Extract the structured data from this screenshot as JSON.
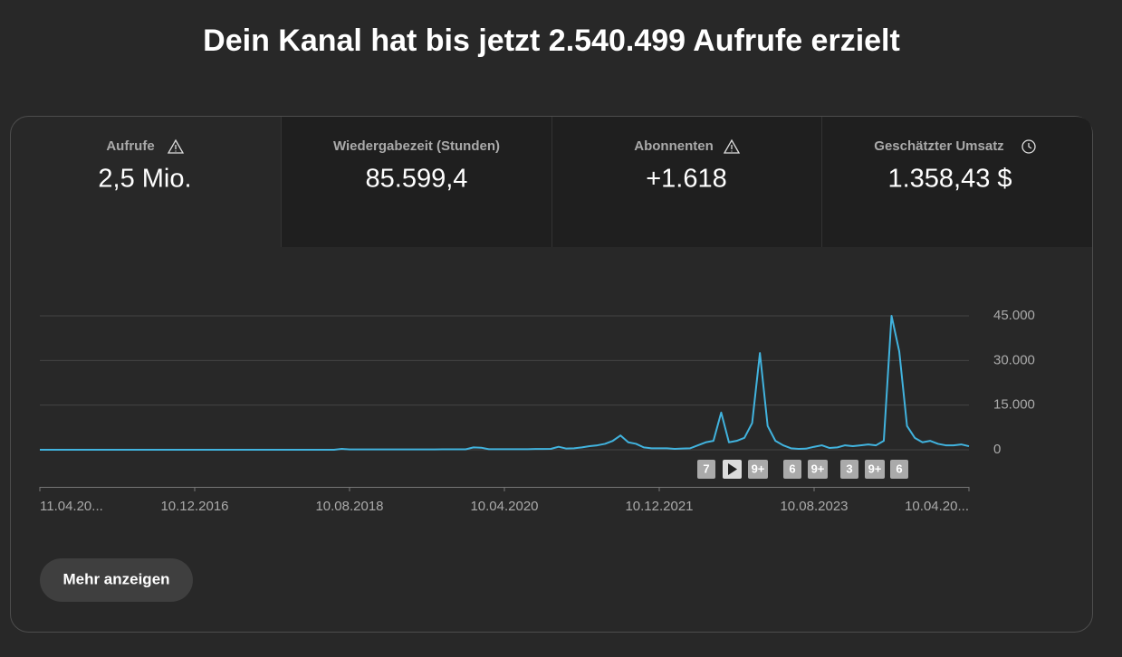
{
  "header": {
    "title": "Dein Kanal hat bis jetzt 2.540.499 Aufrufe erzielt"
  },
  "tabs": [
    {
      "label": "Aufrufe",
      "value": "2,5 Mio."
    },
    {
      "label": "Wiedergabezeit (Stunden)",
      "value": "85.599,4"
    },
    {
      "label": "Abonnenten",
      "value": "+1.618"
    },
    {
      "label": "Geschätzter Umsatz",
      "value": "1.358,43 $"
    }
  ],
  "chart_data": {
    "type": "line",
    "categories": [
      "11.04.20...",
      null,
      null,
      null,
      null,
      null,
      null,
      null,
      null,
      null,
      null,
      null,
      null,
      null,
      null,
      null,
      null,
      null,
      null,
      null,
      "10.12.2016",
      null,
      null,
      null,
      null,
      null,
      null,
      null,
      null,
      null,
      null,
      null,
      null,
      null,
      null,
      null,
      null,
      null,
      null,
      null,
      "10.08.2018",
      null,
      null,
      null,
      null,
      null,
      null,
      null,
      null,
      null,
      null,
      null,
      null,
      null,
      null,
      null,
      null,
      null,
      null,
      null,
      "10.04.2020",
      null,
      null,
      null,
      null,
      null,
      null,
      null,
      null,
      null,
      null,
      null,
      null,
      null,
      null,
      null,
      null,
      null,
      null,
      null,
      "10.12.2021",
      null,
      null,
      null,
      null,
      null,
      null,
      null,
      null,
      null,
      null,
      null,
      null,
      null,
      null,
      null,
      null,
      null,
      null,
      null,
      "10.08.2023",
      null,
      null,
      null,
      null,
      null,
      null,
      null,
      null,
      null,
      null,
      null,
      null,
      null,
      null,
      null,
      null,
      null,
      null,
      null,
      "10.04.20..."
    ],
    "series": [
      {
        "color": "#41b3de",
        "values": [
          0,
          0,
          0,
          0,
          0,
          0,
          0,
          0,
          0,
          0,
          0,
          0,
          0,
          0,
          0,
          0,
          0,
          0,
          0,
          0,
          0,
          0,
          0,
          0,
          0,
          0,
          0,
          0,
          0,
          0,
          0,
          0,
          0,
          0,
          0,
          0,
          0,
          0,
          0,
          300,
          100,
          100,
          100,
          100,
          100,
          100,
          100,
          100,
          100,
          100,
          100,
          100,
          150,
          150,
          150,
          150,
          800,
          700,
          200,
          200,
          200,
          200,
          200,
          200,
          250,
          250,
          300,
          1000,
          400,
          500,
          800,
          1200,
          1500,
          2000,
          3000,
          4800,
          2500,
          2000,
          800,
          500,
          500,
          500,
          300,
          400,
          500,
          1500,
          2500,
          3000,
          12500,
          2500,
          3000,
          4000,
          9000,
          32500,
          8000,
          3000,
          1500,
          500,
          300,
          400,
          1000,
          1500,
          600,
          800,
          1500,
          1200,
          1500,
          1800,
          1500,
          3000,
          45000,
          33000,
          8000,
          4000,
          2500,
          3000,
          2000,
          1500,
          1500,
          1800,
          1200
        ]
      }
    ],
    "ylim": [
      0,
      45000
    ],
    "yticks": [
      0,
      {
        "value": 15000,
        "label": "15.000"
      },
      {
        "value": 30000,
        "label": "30.000"
      },
      {
        "value": 45000,
        "label": "45.000"
      }
    ],
    "grid": true,
    "annotations": [
      "7",
      "9+",
      "6",
      "9+",
      "3",
      "9+",
      "6"
    ]
  },
  "button": "Mehr anzeigen"
}
